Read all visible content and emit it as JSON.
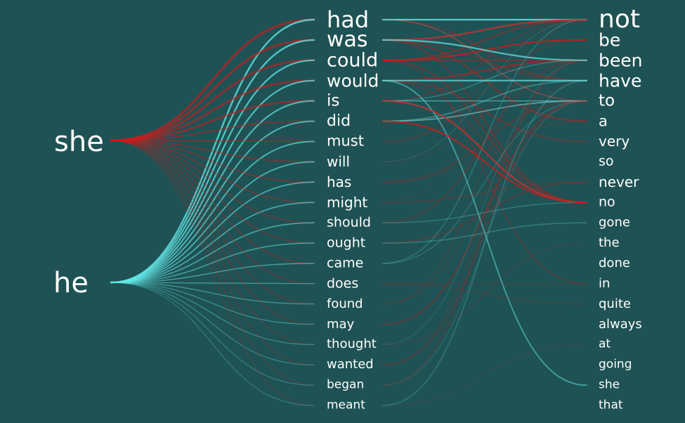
{
  "colors": {
    "background": "#1f5254",
    "she": "#d11a1a",
    "he": "#63e6e6",
    "text": "#ffffff"
  },
  "sources": [
    {
      "label": "she",
      "color": "she"
    },
    {
      "label": "he",
      "color": "he"
    }
  ],
  "middle_words": [
    "had",
    "was",
    "could",
    "would",
    "is",
    "did",
    "must",
    "will",
    "has",
    "might",
    "should",
    "ought",
    "came",
    "does",
    "found",
    "may",
    "thought",
    "wanted",
    "began",
    "meant"
  ],
  "right_words": [
    "not",
    "be",
    "been",
    "have",
    "to",
    "a",
    "very",
    "so",
    "never",
    "no",
    "gone",
    "the",
    "done",
    "in",
    "quite",
    "always",
    "at",
    "going",
    "she",
    "that"
  ]
}
